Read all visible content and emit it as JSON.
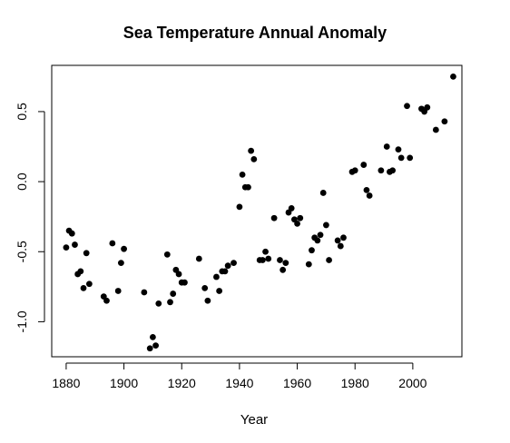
{
  "chart_data": {
    "type": "scatter",
    "title": "Sea Temperature Annual Anomaly",
    "xlabel": "Year",
    "ylabel": "",
    "xlim": [
      1875,
      2017
    ],
    "ylim": [
      -1.25,
      0.83
    ],
    "x_ticks": [
      1880,
      1900,
      1920,
      1940,
      1960,
      1980,
      2000
    ],
    "x_tick_labels": [
      "1880",
      "1900",
      "1920",
      "1940",
      "1960",
      "1980",
      "2000"
    ],
    "y_ticks": [
      -1.0,
      -0.5,
      0.0,
      0.5
    ],
    "y_tick_labels": [
      "-1.0",
      "-0.5",
      "0.0",
      "0.5"
    ],
    "grid": false,
    "legend": "none",
    "point_color": "#000000",
    "x": [
      1880,
      1881,
      1882,
      1883,
      1884,
      1885,
      1886,
      1887,
      1888,
      1893,
      1894,
      1896,
      1898,
      1899,
      1900,
      1907,
      1909,
      1910,
      1911,
      1912,
      1915,
      1916,
      1917,
      1918,
      1919,
      1920,
      1921,
      1926,
      1928,
      1929,
      1932,
      1933,
      1934,
      1935,
      1936,
      1938,
      1940,
      1941,
      1942,
      1943,
      1944,
      1945,
      1947,
      1948,
      1949,
      1950,
      1952,
      1954,
      1955,
      1956,
      1957,
      1958,
      1959,
      1960,
      1961,
      1964,
      1965,
      1966,
      1967,
      1968,
      1969,
      1970,
      1971,
      1974,
      1975,
      1976,
      1979,
      1980,
      1983,
      1984,
      1985,
      1989,
      1991,
      1992,
      1993,
      1995,
      1996,
      1998,
      1999,
      2003,
      2004,
      2005,
      2008,
      2011,
      2014
    ],
    "values": [
      -0.47,
      -0.35,
      -0.37,
      -0.45,
      -0.66,
      -0.64,
      -0.76,
      -0.51,
      -0.73,
      -0.82,
      -0.85,
      -0.44,
      -0.78,
      -0.58,
      -0.48,
      -0.79,
      -1.19,
      -1.11,
      -1.17,
      -0.87,
      -0.52,
      -0.86,
      -0.8,
      -0.63,
      -0.66,
      -0.72,
      -0.72,
      -0.55,
      -0.76,
      -0.85,
      -0.68,
      -0.78,
      -0.64,
      -0.64,
      -0.6,
      -0.58,
      -0.18,
      0.05,
      -0.04,
      -0.04,
      0.22,
      0.16,
      -0.56,
      -0.56,
      -0.5,
      -0.55,
      -0.26,
      -0.56,
      -0.63,
      -0.58,
      -0.22,
      -0.19,
      -0.27,
      -0.3,
      -0.26,
      -0.59,
      -0.49,
      -0.4,
      -0.42,
      -0.38,
      -0.08,
      -0.31,
      -0.56,
      -0.42,
      -0.46,
      -0.4,
      0.07,
      0.08,
      0.12,
      -0.06,
      -0.1,
      0.08,
      0.25,
      0.07,
      0.08,
      0.23,
      0.17,
      0.54,
      0.17,
      0.52,
      0.5,
      0.53,
      0.37,
      0.43,
      0.75
    ]
  }
}
